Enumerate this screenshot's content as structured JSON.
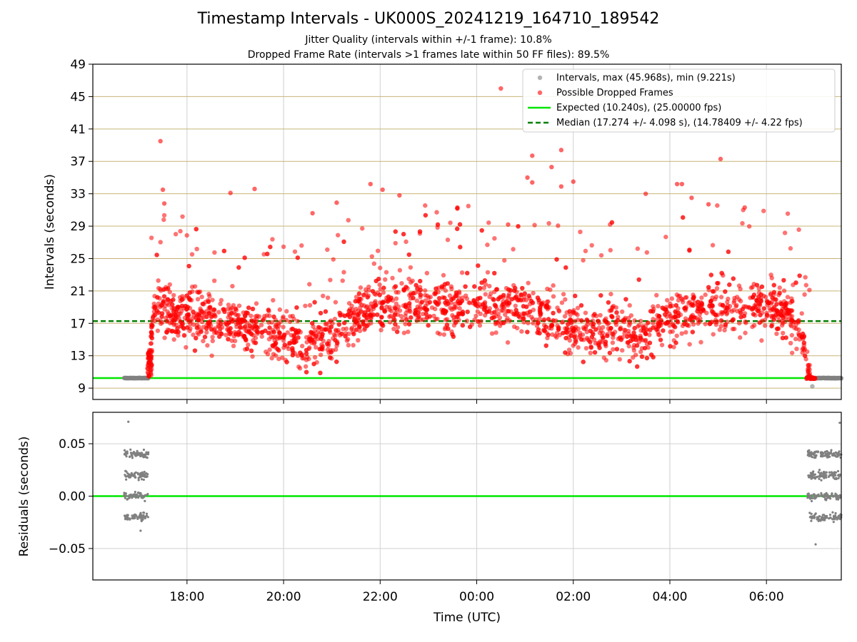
{
  "title": "Timestamp Intervals - UK000S_20241219_164710_189542",
  "subtitle_1": "Jitter Quality (intervals within +/-1 frame): 10.8%",
  "subtitle_2": "Dropped Frame Rate (intervals >1 frames late within 50 FF files): 89.5%",
  "colors": {
    "dropped": "#ff0000",
    "normal": "#808080",
    "expected": "#00e600",
    "median": "#008000",
    "y_grid": "#c8b478",
    "x_grid": "#d0d0d0"
  },
  "chart_data": [
    {
      "type": "scatter",
      "name": "intervals",
      "xlabel": "",
      "ylabel": "Intervals (seconds)",
      "x_unit": "hours since 00:00 UTC",
      "x_range": [
        -7.95,
        7.55
      ],
      "ylim": [
        7.6,
        49
      ],
      "y_ticks": [
        9,
        13,
        17,
        21,
        25,
        29,
        33,
        37,
        41,
        45,
        49
      ],
      "y_tick_labels": [
        "9",
        "13",
        "17",
        "21",
        "25",
        "29",
        "33",
        "37",
        "41",
        "45",
        "49"
      ],
      "x_ticks": [
        -6,
        -4,
        -2,
        0,
        2,
        4,
        6
      ],
      "x_tick_labels": [
        "18:00",
        "20:00",
        "22:00",
        "00:00",
        "02:00",
        "04:00",
        "06:00"
      ],
      "grid": "on",
      "legend_position": "top-right",
      "legend": [
        "Intervals, max (45.968s), min (9.221s)",
        "Possible Dropped Frames",
        "Expected (10.240s), (25.00000 fps)",
        "Median (17.274 +/- 4.098 s), (14.78409 +/- 4.22 fps)"
      ],
      "expected_interval": 10.24,
      "median_interval": 17.274,
      "normal_intervals": {
        "segments": [
          {
            "x_start": -7.3,
            "x_end": -6.8,
            "y": 10.24
          },
          {
            "x_start": 6.85,
            "x_end": 7.55,
            "y": 10.24
          }
        ],
        "points": [
          {
            "x": 6.95,
            "y": 9.221
          }
        ]
      },
      "dropped_frames": {
        "trend": [
          {
            "x": -6.8,
            "y": 10.8
          },
          {
            "x": -6.7,
            "y": 19.0
          },
          {
            "x": -6.0,
            "y": 18.0
          },
          {
            "x": -5.0,
            "y": 17.0
          },
          {
            "x": -4.0,
            "y": 15.5
          },
          {
            "x": -3.5,
            "y": 14.2
          },
          {
            "x": -3.0,
            "y": 15.5
          },
          {
            "x": -2.0,
            "y": 19.5
          },
          {
            "x": -1.0,
            "y": 19.5
          },
          {
            "x": 0.0,
            "y": 19.0
          },
          {
            "x": 1.0,
            "y": 18.8
          },
          {
            "x": 2.0,
            "y": 16.2
          },
          {
            "x": 2.5,
            "y": 15.8
          },
          {
            "x": 3.0,
            "y": 17.0
          },
          {
            "x": 3.3,
            "y": 15.0
          },
          {
            "x": 4.0,
            "y": 18.0
          },
          {
            "x": 5.0,
            "y": 19.0
          },
          {
            "x": 6.0,
            "y": 19.5
          },
          {
            "x": 6.7,
            "y": 17.0
          },
          {
            "x": 6.9,
            "y": 10.24
          }
        ],
        "outliers": [
          {
            "x": -6.55,
            "y": 39.5
          },
          {
            "x": -6.5,
            "y": 33.5
          },
          {
            "x": -6.47,
            "y": 31.8
          },
          {
            "x": -5.1,
            "y": 33.1
          },
          {
            "x": -4.6,
            "y": 33.6
          },
          {
            "x": -3.4,
            "y": 30.6
          },
          {
            "x": -2.9,
            "y": 31.9
          },
          {
            "x": -2.2,
            "y": 34.2
          },
          {
            "x": -1.95,
            "y": 33.5
          },
          {
            "x": -1.6,
            "y": 32.8
          },
          {
            "x": -0.4,
            "y": 31.3
          },
          {
            "x": 0.5,
            "y": 46.0
          },
          {
            "x": 0.65,
            "y": 29.2
          },
          {
            "x": 1.05,
            "y": 35.0
          },
          {
            "x": 1.15,
            "y": 37.7
          },
          {
            "x": 1.15,
            "y": 34.4
          },
          {
            "x": 1.55,
            "y": 36.3
          },
          {
            "x": 1.75,
            "y": 38.4
          },
          {
            "x": 1.75,
            "y": 33.9
          },
          {
            "x": 2.0,
            "y": 34.5
          },
          {
            "x": 3.5,
            "y": 33.0
          },
          {
            "x": 4.15,
            "y": 34.2
          },
          {
            "x": 4.25,
            "y": 34.2
          },
          {
            "x": 4.45,
            "y": 32.5
          },
          {
            "x": 4.8,
            "y": 31.7
          },
          {
            "x": 5.05,
            "y": 37.3
          },
          {
            "x": 5.55,
            "y": 31.3
          }
        ]
      }
    },
    {
      "type": "scatter",
      "name": "residuals",
      "xlabel": "Time (UTC)",
      "ylabel": "Residuals (seconds)",
      "x_unit": "hours since 00:00 UTC",
      "x_range": [
        -7.95,
        7.55
      ],
      "ylim": [
        -0.08,
        0.08
      ],
      "y_ticks": [
        0.05,
        0.0,
        -0.05
      ],
      "y_tick_labels": [
        "0.05",
        "0.00",
        "−0.05"
      ],
      "x_ticks": [
        -6,
        -4,
        -2,
        0,
        2,
        4,
        6
      ],
      "x_tick_labels": [
        "18:00",
        "20:00",
        "22:00",
        "00:00",
        "02:00",
        "04:00",
        "06:00"
      ],
      "grid": "on",
      "zero_line": 0.0,
      "clusters": [
        {
          "x_start": -7.3,
          "x_end": -6.8,
          "levels": [
            0.04,
            0.02,
            0.0,
            -0.02
          ],
          "extremes": [
            0.071,
            -0.033
          ]
        },
        {
          "x_start": 6.85,
          "x_end": 7.55,
          "levels": [
            0.04,
            0.02,
            0.0,
            -0.02
          ],
          "extremes": [
            0.07,
            -0.046
          ]
        }
      ]
    }
  ]
}
